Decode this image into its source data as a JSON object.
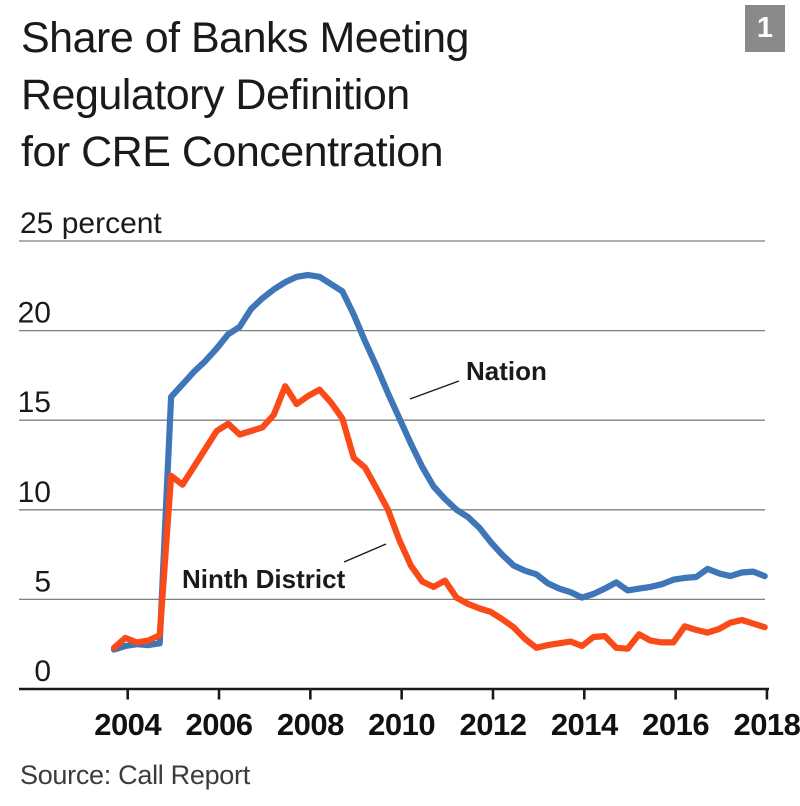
{
  "figure_badge": "1",
  "title_lines": [
    "Share of Banks Meeting",
    "Regulatory Definition",
    "for CRE Concentration"
  ],
  "source": "Source: Call Report",
  "annotations": {
    "nation": {
      "text": "Nation"
    },
    "ninth_district": {
      "text": "Ninth District"
    }
  },
  "colors": {
    "nation_line": "#3f76b8",
    "ninth_district_line": "#f94a18",
    "gridline": "#7f7f7f",
    "axis": "#1a1a1a",
    "badge_bg": "#8a8a8a",
    "badge_text": "#ffffff",
    "text": "#1a1a1a"
  },
  "y_axis": {
    "labels": [
      {
        "label": "25 percent",
        "value": 25
      },
      {
        "label": "20",
        "value": 20
      },
      {
        "label": "15",
        "value": 15
      },
      {
        "label": "10",
        "value": 10
      },
      {
        "label": "5",
        "value": 5
      },
      {
        "label": "0",
        "value": 0
      }
    ]
  },
  "x_axis": {
    "tick_years": [
      2004,
      2006,
      2008,
      2010,
      2012,
      2014,
      2016,
      2018
    ]
  },
  "chart_data": {
    "type": "line",
    "title": "Share of Banks Meeting Regulatory Definition for CRE Concentration",
    "ylabel": "percent",
    "ylim": [
      0,
      25
    ],
    "x_range": [
      2003.7,
      2018.0
    ],
    "x_tick_labels": [
      "2004",
      "2006",
      "2008",
      "2010",
      "2012",
      "2014",
      "2016",
      "2018"
    ],
    "grid": true,
    "legend_position": "inline-annotations",
    "x_start": 2003.7,
    "x_step": 0.25,
    "series": [
      {
        "name": "Nation",
        "color": "#3f76b8",
        "values": [
          2.2,
          2.4,
          2.5,
          2.45,
          2.55,
          16.3,
          17.0,
          17.7,
          18.3,
          19.0,
          19.8,
          20.2,
          21.2,
          21.8,
          22.3,
          22.7,
          23.0,
          23.1,
          23.0,
          22.6,
          22.2,
          20.9,
          19.4,
          18.0,
          16.5,
          15.1,
          13.7,
          12.4,
          11.3,
          10.6,
          10.0,
          9.6,
          9.0,
          8.2,
          7.5,
          6.9,
          6.6,
          6.4,
          5.9,
          5.6,
          5.4,
          5.1,
          5.3,
          5.6,
          5.95,
          5.5,
          5.6,
          5.7,
          5.85,
          6.1,
          6.2,
          6.25,
          6.7,
          6.45,
          6.3,
          6.5,
          6.55,
          6.3
        ]
      },
      {
        "name": "Ninth District",
        "color": "#f94a18",
        "values": [
          2.3,
          2.85,
          2.6,
          2.7,
          3.0,
          11.9,
          11.4,
          12.4,
          13.4,
          14.4,
          14.8,
          14.2,
          14.4,
          14.6,
          15.3,
          16.9,
          15.9,
          16.35,
          16.7,
          16.0,
          15.1,
          12.9,
          12.35,
          11.2,
          10.0,
          8.3,
          6.9,
          6.0,
          5.7,
          6.05,
          5.1,
          4.75,
          4.5,
          4.3,
          3.9,
          3.45,
          2.8,
          2.3,
          2.45,
          2.55,
          2.65,
          2.4,
          2.9,
          2.95,
          2.3,
          2.25,
          3.05,
          2.7,
          2.6,
          2.6,
          3.5,
          3.3,
          3.15,
          3.35,
          3.7,
          3.85,
          3.65,
          3.45
        ]
      }
    ],
    "source": "Call Report"
  }
}
